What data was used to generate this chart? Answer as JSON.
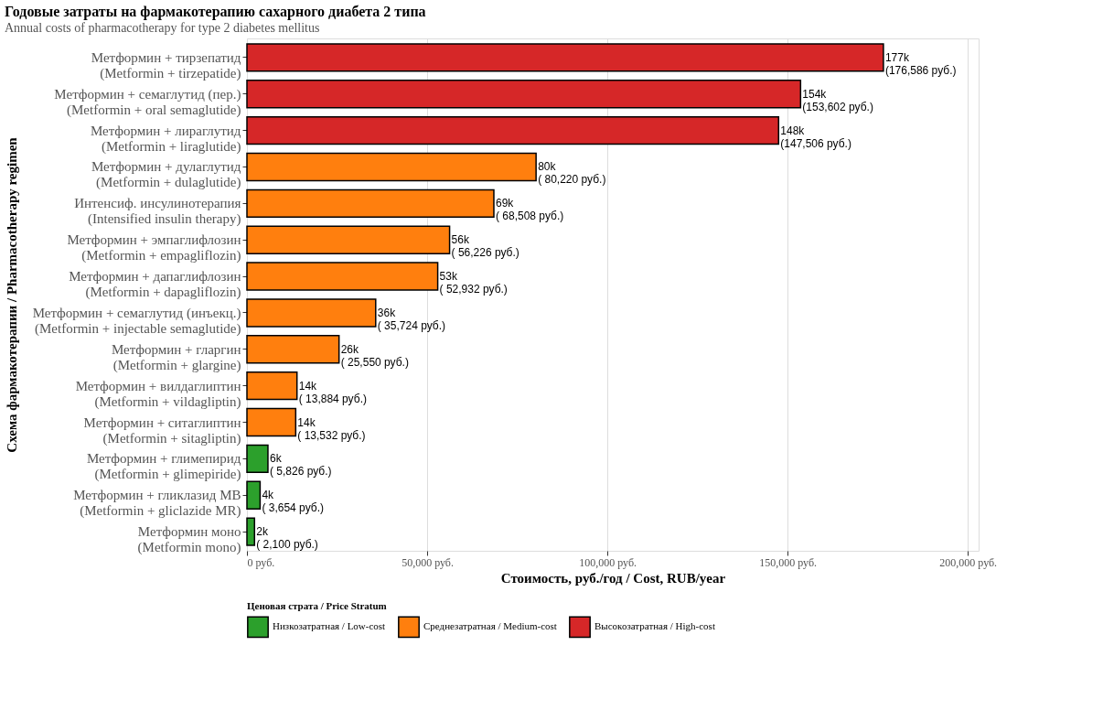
{
  "chart_data": {
    "type": "bar",
    "orientation": "horizontal",
    "stacked": true,
    "title": "Годовые затраты на фармакотерапию сахарного диабета 2 типа",
    "subtitle": "Annual costs of pharmacotherapy for type 2 diabetes mellitus",
    "xlabel": "Стоимость, руб./год / Cost, RUB/year",
    "ylabel": "Схема фармакотерапии / Pharmacotherapy regimen",
    "legend_title": "Ценовая страта / Price Stratum",
    "categories": [
      "Метформин + тирзепатид\n(Metformin + tirzepatide)",
      "Метформин + семаглутид (пер.)\n(Metformin + oral semaglutide)",
      "Метформин + лираглутид\n(Metformin + liraglutide)",
      "Метформин + дулаглутид\n(Metformin + dulaglutide)",
      "Интенсиф. инсулинотерапия\n(Intensified insulin therapy)",
      "Метформин + эмпаглифлозин\n(Metformin + empagliflozin)",
      "Метформин + дапаглифлозин\n(Metformin + dapagliflozin)",
      "Метформин + семаглутид (инъекц.)\n(Metformin + injectable semaglutide)",
      "Метформин + гларгин\n(Metformin + glargine)",
      "Метформин + вилдаглиптин\n(Metformin + vildagliptin)",
      "Метформин + ситаглиптин\n(Metformin + sitagliptin)",
      "Метформин + глимепирид\n(Metformin + glimepiride)",
      "Метформин + гликлазид MB\n(Metformin + gliclazide MR)",
      "Метформин моно\n(Metformin mono)"
    ],
    "series": [
      {
        "name": "Низкозатратная / Low-cost",
        "color": "#2ca02c",
        "values": [
          null,
          null,
          null,
          null,
          null,
          null,
          null,
          null,
          null,
          null,
          null,
          5826,
          3654,
          2100
        ],
        "value_labels": [
          null,
          null,
          null,
          null,
          null,
          null,
          null,
          null,
          null,
          null,
          null,
          "6k\n(  5,826 руб.)",
          "4k\n(  3,654 руб.)",
          "2k\n(  2,100 руб.)"
        ]
      },
      {
        "name": "Среднезатратная / Medium-cost",
        "color": "#ff7f0e",
        "values": [
          null,
          null,
          null,
          80220,
          68508,
          56226,
          52932,
          35724,
          25550,
          13884,
          13532,
          null,
          null,
          null
        ],
        "value_labels": [
          null,
          null,
          null,
          "80k\n( 80,220 руб.)",
          "69k\n( 68,508 руб.)",
          "56k\n( 56,226 руб.)",
          "53k\n( 52,932 руб.)",
          "36k\n( 35,724 руб.)",
          "26k\n( 25,550 руб.)",
          "14k\n( 13,884 руб.)",
          "14k\n( 13,532 руб.)",
          null,
          null,
          null
        ]
      },
      {
        "name": "Высокозатратная / High-cost",
        "color": "#d62728",
        "values": [
          176586,
          153602,
          147506,
          null,
          null,
          null,
          null,
          null,
          null,
          null,
          null,
          null,
          null,
          null
        ],
        "value_labels": [
          "177k\n(176,586 руб.)",
          "154k\n(153,602 руб.)",
          "148k\n(147,506 руб.)",
          null,
          null,
          null,
          null,
          null,
          null,
          null,
          null,
          null,
          null,
          null
        ]
      }
    ],
    "xlim": [
      0,
      203000
    ],
    "xticks": [
      {
        "value": 0,
        "label": "0 руб."
      },
      {
        "value": 50000,
        "label": "50,000 руб."
      },
      {
        "value": 100000,
        "label": "100,000 руб."
      },
      {
        "value": 150000,
        "label": "150,000 руб."
      },
      {
        "value": 200000,
        "label": "200,000 руб."
      }
    ],
    "grid": "x",
    "legend": "bottom"
  }
}
